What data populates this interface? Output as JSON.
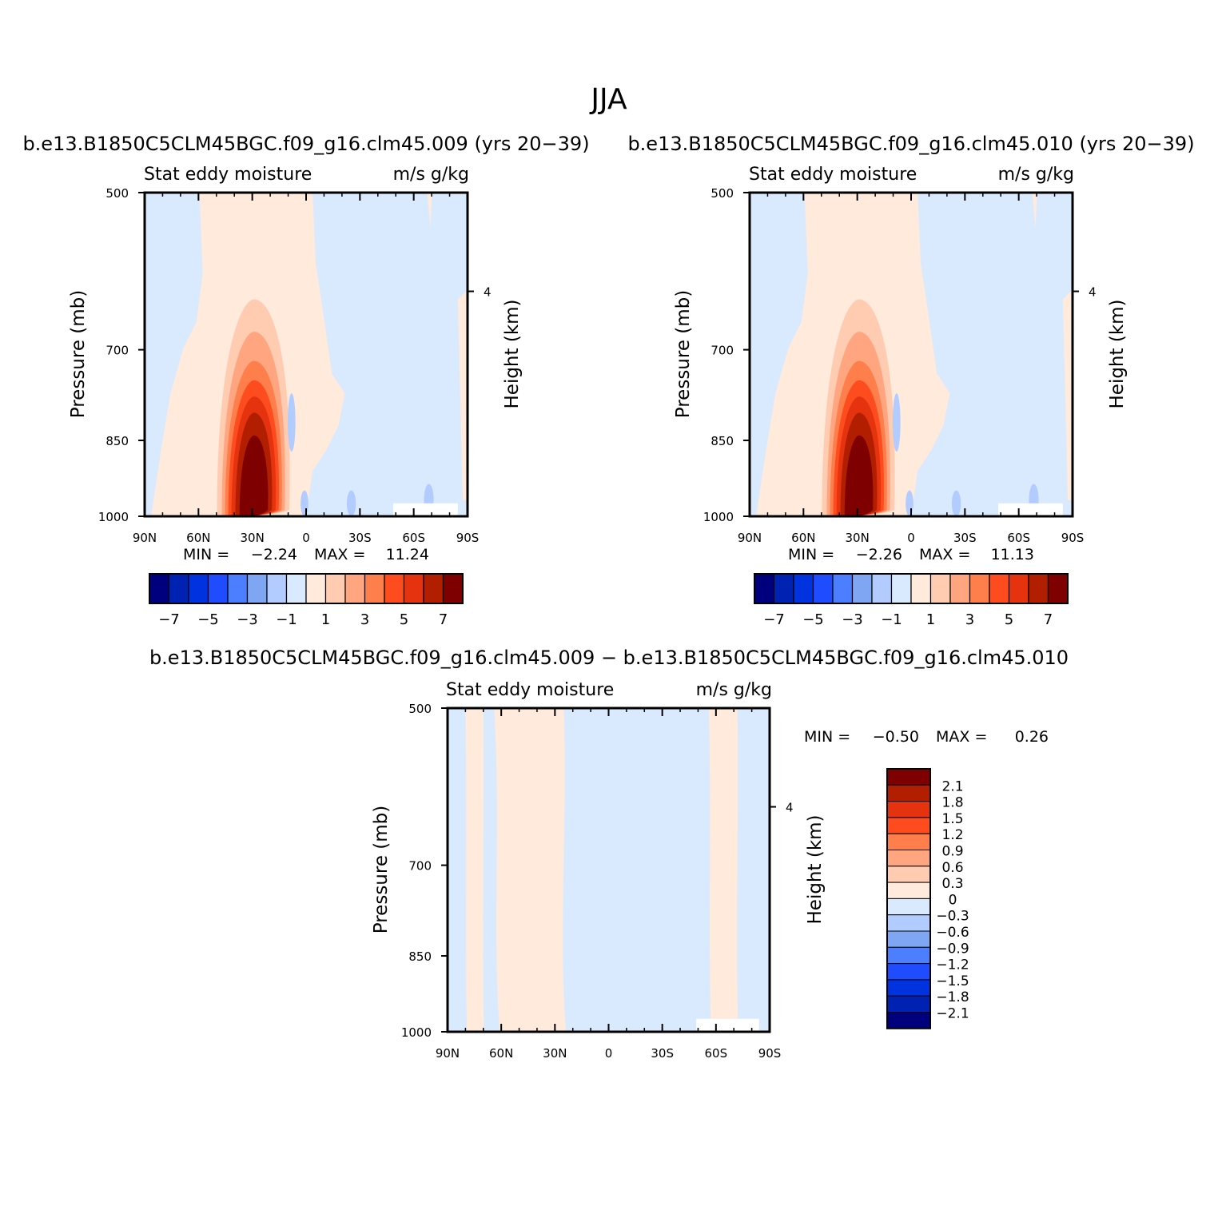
{
  "figure": {
    "title": "JJA"
  },
  "colors": {
    "fill_levels": [
      "#00007f",
      "#0022b2",
      "#0033e0",
      "#1f4cff",
      "#4c7fff",
      "#7fa6f2",
      "#b2ccff",
      "#d9eaff",
      "#ffeadb",
      "#ffccb2",
      "#ffa680",
      "#ff7f4c",
      "#ff4c1f",
      "#e5330f",
      "#b21f00",
      "#7f0000"
    ],
    "panel_background": "#d9eaff"
  },
  "chart_data": [
    {
      "type": "heatmap",
      "case_title": "b.e13.B1850C5CLM45BGC.f09_g16.clm45.009 (yrs 20−39)",
      "left_string": "Stat eddy moisture",
      "right_string": "m/s g/kg",
      "ylabel": "Pressure (mb)",
      "ylabel_right": "Height (km)",
      "x_ticks": [
        "90N",
        "60N",
        "30N",
        "0",
        "30S",
        "60S",
        "90S"
      ],
      "x_values": [
        90,
        60,
        30,
        0,
        -30,
        -60,
        -90
      ],
      "y_ticks": [
        "500",
        "700",
        "850",
        "1000"
      ],
      "y_values": [
        500,
        700,
        850,
        1000
      ],
      "ylim": [
        500,
        1000
      ],
      "right_ticks": [
        "4"
      ],
      "min_label": "MIN =",
      "min_value": "−2.24",
      "max_label": "MAX =",
      "max_value": "11.24",
      "levels": [
        "−7",
        "−5",
        "−3",
        "−1",
        "1",
        "3",
        "5",
        "7"
      ],
      "max_core": {
        "lat": 29,
        "pressure": 950,
        "value": 11.24
      },
      "min_core": {
        "lat": 0,
        "pressure": 880,
        "value": -2.24
      }
    },
    {
      "type": "heatmap",
      "case_title": "b.e13.B1850C5CLM45BGC.f09_g16.clm45.010 (yrs 20−39)",
      "left_string": "Stat eddy moisture",
      "right_string": "m/s g/kg",
      "ylabel": "Pressure (mb)",
      "ylabel_right": "Height (km)",
      "x_ticks": [
        "90N",
        "60N",
        "30N",
        "0",
        "30S",
        "60S",
        "90S"
      ],
      "x_values": [
        90,
        60,
        30,
        0,
        -30,
        -60,
        -90
      ],
      "y_ticks": [
        "500",
        "700",
        "850",
        "1000"
      ],
      "y_values": [
        500,
        700,
        850,
        1000
      ],
      "ylim": [
        500,
        1000
      ],
      "right_ticks": [
        "4"
      ],
      "min_label": "MIN =",
      "min_value": "−2.26",
      "max_label": "MAX =",
      "max_value": "11.13",
      "levels": [
        "−7",
        "−5",
        "−3",
        "−1",
        "1",
        "3",
        "5",
        "7"
      ],
      "max_core": {
        "lat": 29,
        "pressure": 950,
        "value": 11.13
      },
      "min_core": {
        "lat": 0,
        "pressure": 880,
        "value": -2.26
      }
    },
    {
      "type": "heatmap",
      "case_title": "b.e13.B1850C5CLM45BGC.f09_g16.clm45.009 − b.e13.B1850C5CLM45BGC.f09_g16.clm45.010",
      "left_string": "Stat eddy moisture",
      "right_string": "m/s g/kg",
      "ylabel": "Pressure (mb)",
      "ylabel_right": "Height (km)",
      "x_ticks": [
        "90N",
        "60N",
        "30N",
        "0",
        "30S",
        "60S",
        "90S"
      ],
      "x_values": [
        90,
        60,
        30,
        0,
        -30,
        -60,
        -90
      ],
      "y_ticks": [
        "500",
        "700",
        "850",
        "1000"
      ],
      "y_values": [
        500,
        700,
        850,
        1000
      ],
      "ylim": [
        500,
        1000
      ],
      "right_ticks": [
        "4"
      ],
      "min_label": "MIN =",
      "min_value": "−0.50",
      "max_label": "MAX =",
      "max_value": "0.26",
      "levels": [
        "2.1",
        "1.8",
        "1.5",
        "1.2",
        "0.9",
        "0.6",
        "0.3",
        "0",
        "−0.3",
        "−0.6",
        "−0.9",
        "−1.2",
        "−1.5",
        "−1.8",
        "−2.1"
      ],
      "positive_bands_lat": [
        [
          80,
          70
        ],
        [
          64,
          25
        ],
        [
          -56,
          -72
        ]
      ]
    }
  ]
}
